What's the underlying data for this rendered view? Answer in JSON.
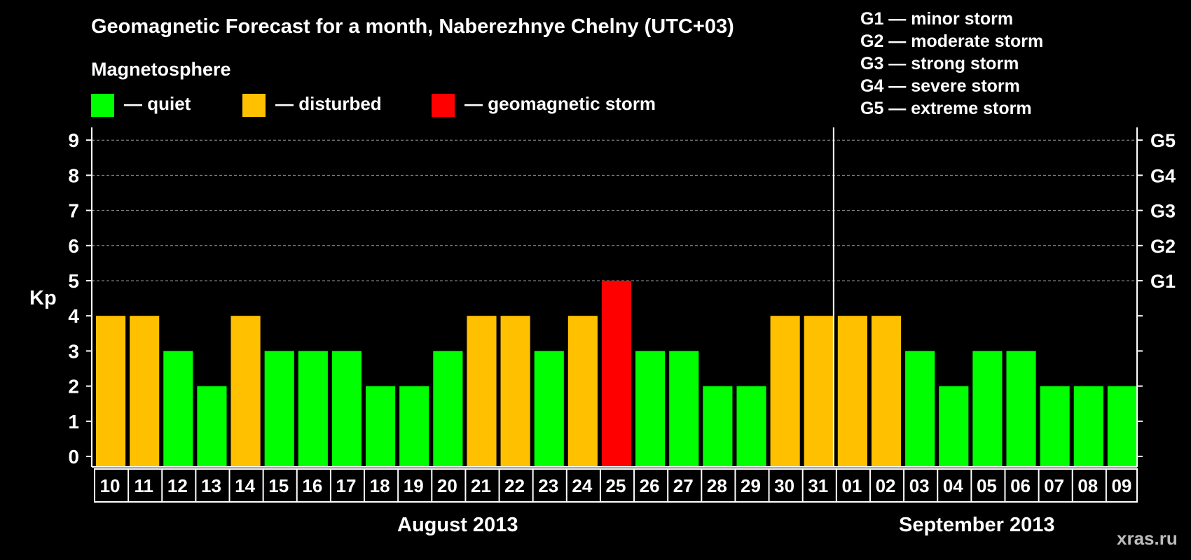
{
  "title": "Geomagnetic Forecast for a month, Naberezhnye Chelny (UTC+03)",
  "legend": {
    "heading": "Magnetosphere",
    "items": [
      {
        "label": "— quiet",
        "color": "#00ff00"
      },
      {
        "label": "— disturbed",
        "color": "#ffc000"
      },
      {
        "label": "— geomagnetic storm",
        "color": "#ff0000"
      }
    ]
  },
  "storm_scale": [
    "G1 — minor storm",
    "G2 — moderate storm",
    "G3 — strong storm",
    "G4 — severe storm",
    "G5 — extreme storm"
  ],
  "watermark": "xras.ru",
  "colors": {
    "quiet": "#00ff00",
    "disturbed": "#ffc000",
    "storm": "#ff0000",
    "background": "#000000",
    "axis": "#ffffff"
  },
  "chart_data": {
    "type": "bar",
    "title": "Geomagnetic Forecast for a month, Naberezhnye Chelny (UTC+03)",
    "ylabel": "Kp",
    "ylim": [
      0,
      9
    ],
    "yticks": [
      "0",
      "1",
      "2",
      "3",
      "4",
      "5",
      "6",
      "7",
      "8",
      "9"
    ],
    "right_axis": [
      {
        "value": 5,
        "label": "G1"
      },
      {
        "value": 6,
        "label": "G2"
      },
      {
        "value": 7,
        "label": "G3"
      },
      {
        "value": 8,
        "label": "G4"
      },
      {
        "value": 9,
        "label": "G5"
      }
    ],
    "grid": "dashed horizontal at 5-9",
    "categories": [
      "10",
      "11",
      "12",
      "13",
      "14",
      "15",
      "16",
      "17",
      "18",
      "19",
      "20",
      "21",
      "22",
      "23",
      "24",
      "25",
      "26",
      "27",
      "28",
      "29",
      "30",
      "31",
      "01",
      "02",
      "03",
      "04",
      "05",
      "06",
      "07",
      "08",
      "09"
    ],
    "values": [
      4,
      4,
      3,
      2,
      4,
      3,
      3,
      3,
      2,
      2,
      3,
      4,
      4,
      3,
      4,
      5,
      3,
      3,
      2,
      2,
      4,
      4,
      4,
      4,
      3,
      2,
      3,
      3,
      2,
      2,
      2
    ],
    "status": [
      "disturbed",
      "disturbed",
      "quiet",
      "quiet",
      "disturbed",
      "quiet",
      "quiet",
      "quiet",
      "quiet",
      "quiet",
      "quiet",
      "disturbed",
      "disturbed",
      "quiet",
      "disturbed",
      "storm",
      "quiet",
      "quiet",
      "quiet",
      "quiet",
      "disturbed",
      "disturbed",
      "disturbed",
      "disturbed",
      "quiet",
      "quiet",
      "quiet",
      "quiet",
      "quiet",
      "quiet",
      "quiet"
    ],
    "months": [
      {
        "label": "August 2013",
        "days": 22
      },
      {
        "label": "September 2013",
        "days": 9
      }
    ]
  }
}
